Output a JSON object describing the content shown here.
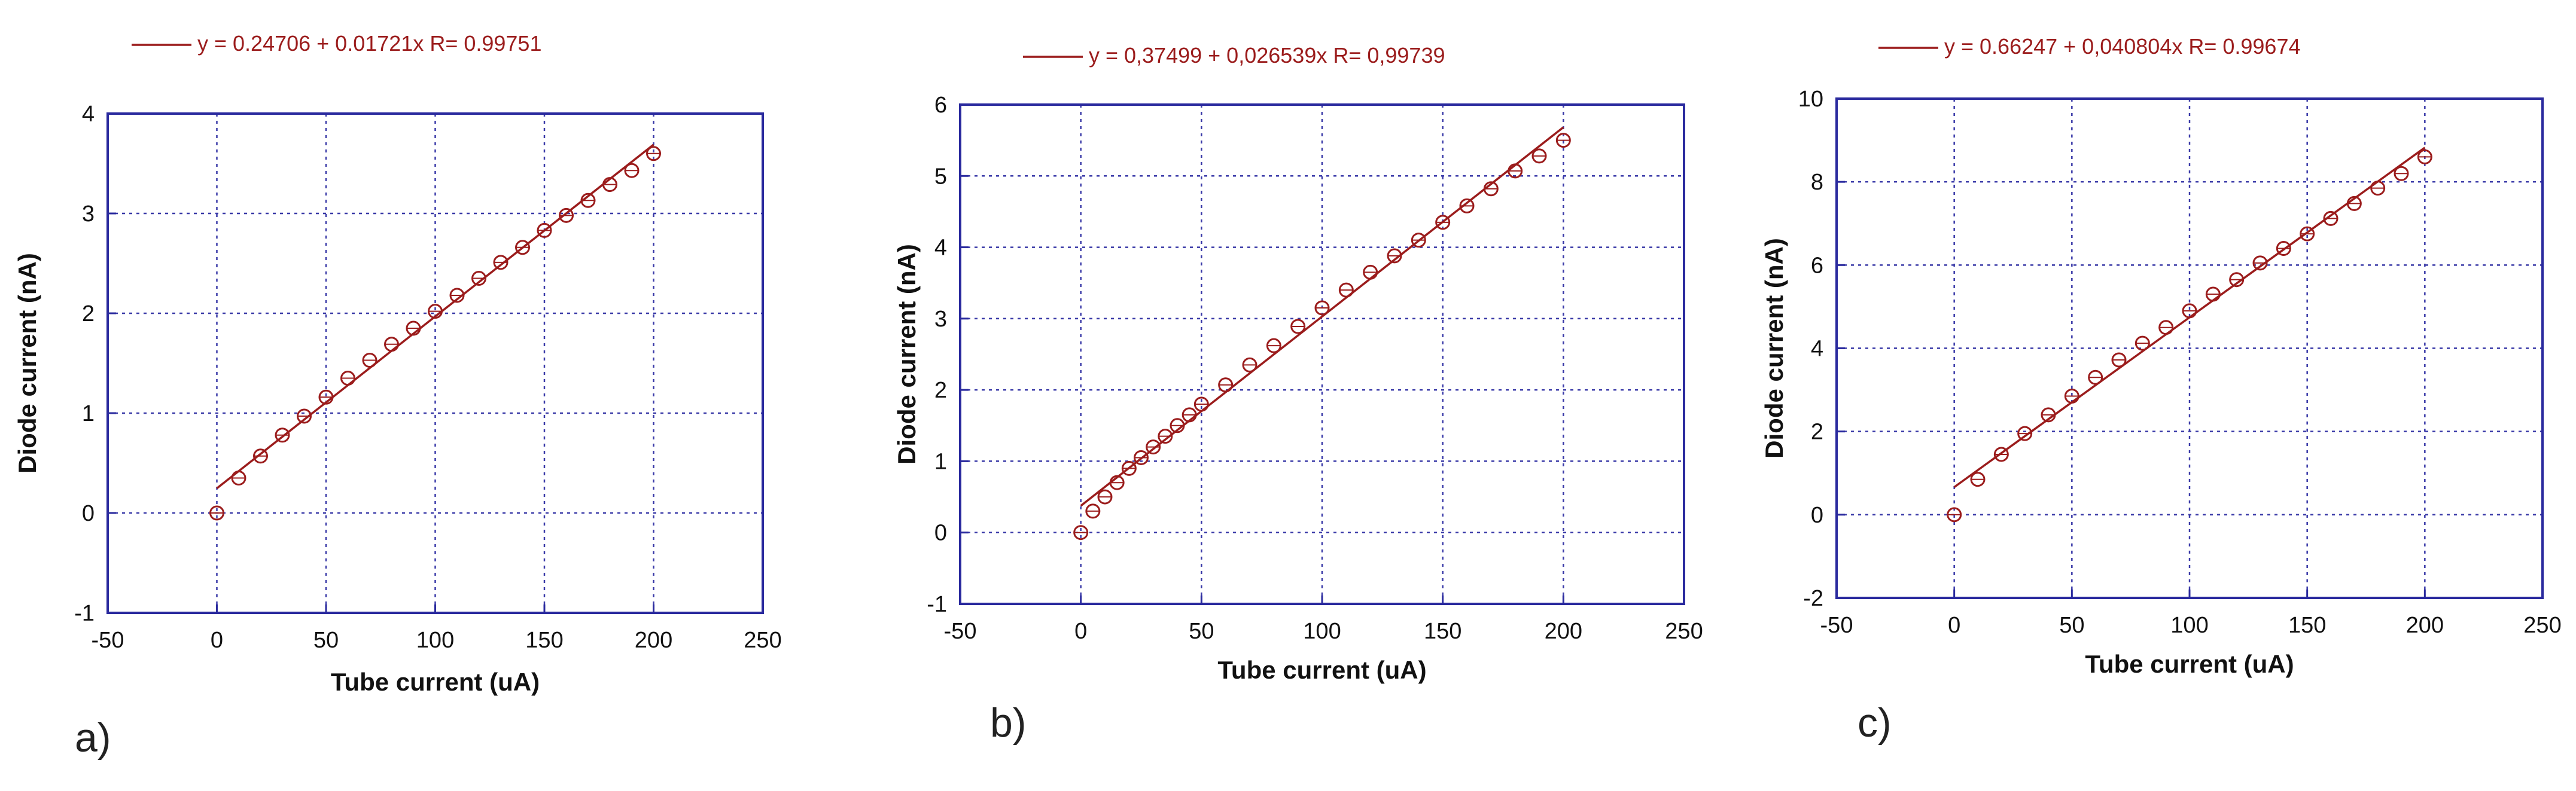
{
  "colors": {
    "fit": "#9b1c1c",
    "marker": "#9b1c1c",
    "axes": "#2a2a9e",
    "grid": "#3a3aa8",
    "text": "#111111",
    "legend_text": "#9b1c1c"
  },
  "panels": [
    {
      "label": "a)"
    },
    {
      "label": "b)"
    },
    {
      "label": "c)"
    }
  ],
  "chart_data": [
    {
      "type": "scatter",
      "title": "",
      "legend": "y = 0.24706 + 0.01721x   R= 0.99751",
      "legend_position": "top",
      "xlabel": "Tube current (uA)",
      "ylabel": "Diode current (nA)",
      "xlim": [
        -50,
        250
      ],
      "ylim": [
        -1,
        4
      ],
      "xticks": [
        -50,
        0,
        50,
        100,
        150,
        200,
        250
      ],
      "yticks": [
        -1,
        0,
        1,
        2,
        3,
        4
      ],
      "xtick_labels": [
        "-50",
        "0",
        "50",
        "100",
        "150",
        "200",
        "250"
      ],
      "ytick_labels": [
        "-1",
        "0",
        "1",
        "2",
        "3",
        "4"
      ],
      "grid": true,
      "fit": {
        "intercept": 0.24706,
        "slope": 0.01721,
        "x_range": [
          0,
          200
        ]
      },
      "x": [
        0,
        10,
        20,
        30,
        40,
        50,
        60,
        70,
        80,
        90,
        100,
        110,
        120,
        130,
        140,
        150,
        160,
        170,
        180,
        190,
        200
      ],
      "y": [
        0,
        0.35,
        0.57,
        0.78,
        0.97,
        1.16,
        1.35,
        1.53,
        1.69,
        1.85,
        2.02,
        2.18,
        2.35,
        2.51,
        2.66,
        2.83,
        2.98,
        3.13,
        3.29,
        3.43,
        3.6
      ]
    },
    {
      "type": "scatter",
      "title": "",
      "legend": "y = 0,37499 + 0,026539x   R= 0,99739",
      "legend_position": "top",
      "xlabel": "Tube current (uA)",
      "ylabel": "Diode current (nA)",
      "xlim": [
        -50,
        250
      ],
      "ylim": [
        -1,
        6
      ],
      "xticks": [
        -50,
        0,
        50,
        100,
        150,
        200,
        250
      ],
      "yticks": [
        -1,
        0,
        1,
        2,
        3,
        4,
        5,
        6
      ],
      "xtick_labels": [
        "-50",
        "0",
        "50",
        "100",
        "150",
        "200",
        "250"
      ],
      "ytick_labels": [
        "-1",
        "0",
        "1",
        "2",
        "3",
        "4",
        "5",
        "6"
      ],
      "grid": true,
      "fit": {
        "intercept": 0.37499,
        "slope": 0.026539,
        "x_range": [
          0,
          200
        ]
      },
      "x": [
        0,
        5,
        10,
        15,
        20,
        25,
        30,
        35,
        40,
        45,
        50,
        60,
        70,
        80,
        90,
        100,
        110,
        120,
        130,
        140,
        150,
        160,
        170,
        180,
        190,
        200
      ],
      "y": [
        0,
        0.3,
        0.5,
        0.7,
        0.9,
        1.05,
        1.2,
        1.35,
        1.5,
        1.65,
        1.8,
        2.07,
        2.35,
        2.62,
        2.89,
        3.15,
        3.4,
        3.65,
        3.88,
        4.1,
        4.35,
        4.58,
        4.82,
        5.07,
        5.28,
        5.5
      ]
    },
    {
      "type": "scatter",
      "title": "",
      "legend": "y = 0.66247 + 0,040804x   R= 0.99674",
      "legend_position": "top",
      "xlabel": "Tube current (uA)",
      "ylabel": "Diode current (nA)",
      "xlim": [
        -50,
        250
      ],
      "ylim": [
        -2,
        10
      ],
      "xticks": [
        -50,
        0,
        50,
        100,
        150,
        200,
        250
      ],
      "yticks": [
        -2,
        0,
        2,
        4,
        6,
        8,
        10
      ],
      "xtick_labels": [
        "-50",
        "0",
        "50",
        "100",
        "150",
        "200",
        "250"
      ],
      "ytick_labels": [
        "-2",
        "0",
        "2",
        "4",
        "6",
        "8",
        "10"
      ],
      "grid": true,
      "fit": {
        "intercept": 0.66247,
        "slope": 0.040804,
        "x_range": [
          0,
          200
        ]
      },
      "x": [
        0,
        10,
        20,
        30,
        40,
        50,
        60,
        70,
        80,
        90,
        100,
        110,
        120,
        130,
        140,
        150,
        160,
        170,
        180,
        190,
        200
      ],
      "y": [
        0,
        0.85,
        1.45,
        1.95,
        2.4,
        2.85,
        3.3,
        3.72,
        4.12,
        4.5,
        4.9,
        5.3,
        5.65,
        6.05,
        6.4,
        6.75,
        7.12,
        7.48,
        7.85,
        8.2,
        8.6
      ]
    }
  ]
}
